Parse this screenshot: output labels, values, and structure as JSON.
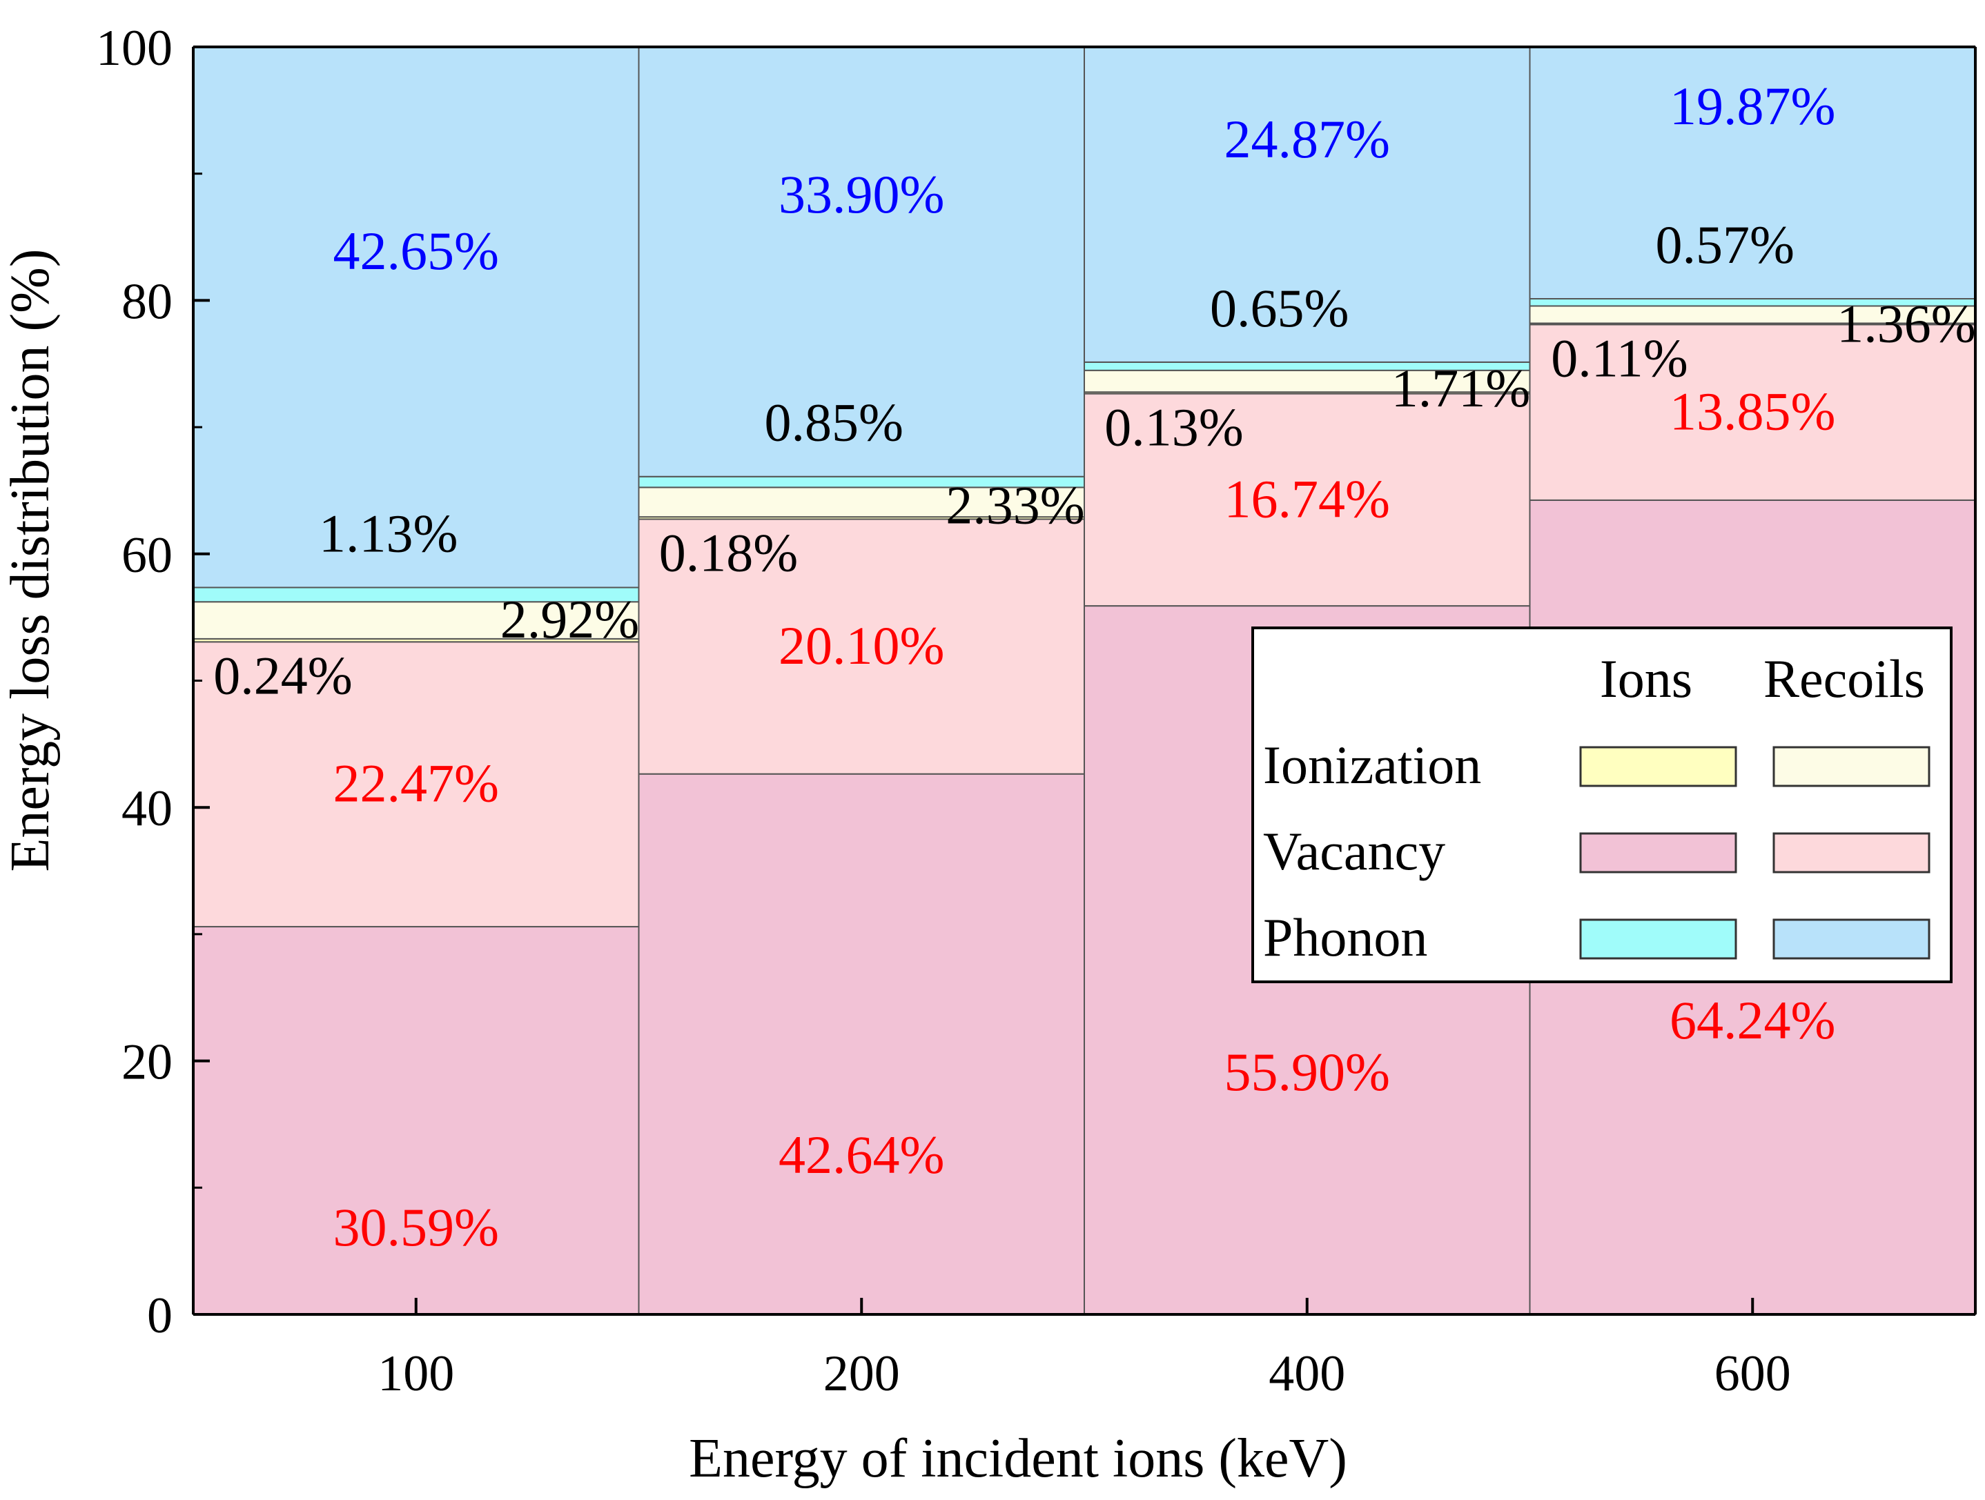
{
  "chart_data": {
    "type": "bar",
    "subtype": "stacked-100-percent",
    "categories": [
      "100",
      "200",
      "400",
      "600"
    ],
    "xlabel": "Energy of incident ions (keV)",
    "ylabel": "Energy loss distribution (%)",
    "ylim": [
      0,
      100
    ],
    "yticks": [
      "0",
      "20",
      "40",
      "60",
      "80",
      "100"
    ],
    "legend_position": "center-right",
    "legend": {
      "columns": [
        "Ions",
        "Recoils"
      ],
      "rows": [
        "Ionization",
        "Vacancy",
        "Phonon"
      ]
    },
    "series": [
      {
        "name": "Vacancy (Ions)",
        "color": "#F2C2D6",
        "values": [
          30.59,
          42.64,
          55.9,
          64.24
        ],
        "labels": [
          "30.59%",
          "42.64%",
          "55.90%",
          "64.24%"
        ],
        "label_color": "#FF0000"
      },
      {
        "name": "Vacancy (Recoils)",
        "color": "#FDD9DC",
        "values": [
          22.47,
          20.1,
          16.74,
          13.85
        ],
        "labels": [
          "22.47%",
          "20.10%",
          "16.74%",
          "13.85%"
        ],
        "label_color": "#FF0000"
      },
      {
        "name": "Ionization (Ions)",
        "color": "#FFFFC0",
        "values": [
          0.24,
          0.18,
          0.13,
          0.11
        ],
        "labels": [
          "0.24%",
          "0.18%",
          "0.13%",
          "0.11%"
        ],
        "label_color": "#000000"
      },
      {
        "name": "Ionization (Recoils)",
        "color": "#FDFCE6",
        "values": [
          2.92,
          2.33,
          1.71,
          1.36
        ],
        "labels": [
          "2.92%",
          "2.33%",
          "1.71%",
          "1.36%"
        ],
        "label_color": "#000000"
      },
      {
        "name": "Phonon (Ions)",
        "color": "#A0FCFA",
        "values": [
          1.13,
          0.85,
          0.65,
          0.57
        ],
        "labels": [
          "1.13%",
          "0.85%",
          "0.65%",
          "0.57%"
        ],
        "label_color": "#000000"
      },
      {
        "name": "Phonon (Recoils)",
        "color": "#B8E2FA",
        "values": [
          42.65,
          33.9,
          24.87,
          19.87
        ],
        "labels": [
          "42.65%",
          "33.90%",
          "24.87%",
          "19.87%"
        ],
        "label_color": "#0000FF"
      }
    ]
  }
}
